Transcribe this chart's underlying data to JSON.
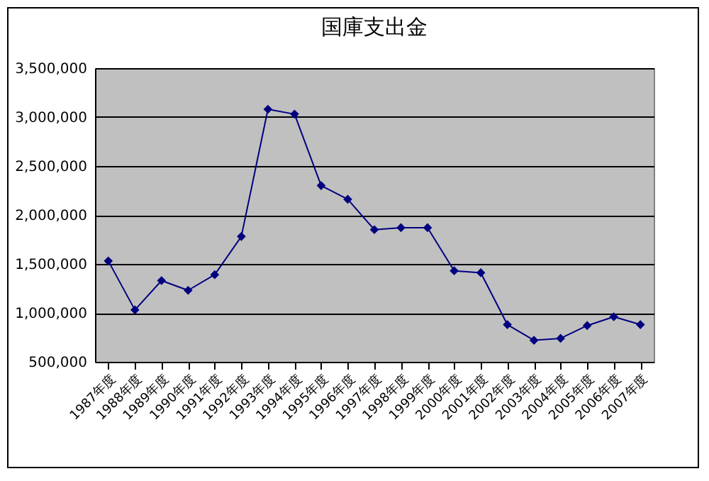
{
  "chart_data": {
    "type": "line",
    "title": "国庫支出金",
    "categories": [
      "1987年度",
      "1988年度",
      "1989年度",
      "1990年度",
      "1991年度",
      "1992年度",
      "1993年度",
      "1994年度",
      "1995年度",
      "1996年度",
      "1997年度",
      "1998年度",
      "1999年度",
      "2000年度",
      "2001年度",
      "2002年度",
      "2003年度",
      "2004年度",
      "2005年度",
      "2006年度",
      "2007年度"
    ],
    "series": [
      {
        "color": "#000080",
        "values": [
          1530000,
          1030000,
          1330000,
          1230000,
          1390000,
          1780000,
          3080000,
          3030000,
          2300000,
          2160000,
          1850000,
          1870000,
          1870000,
          1430000,
          1410000,
          880000,
          720000,
          740000,
          870000,
          960000,
          880000
        ]
      }
    ],
    "ylim": [
      500000,
      3500000
    ],
    "yticks": [
      {
        "value": 500000,
        "label": "500,000"
      },
      {
        "value": 1000000,
        "label": "1,000,000"
      },
      {
        "value": 1500000,
        "label": "1,500,000"
      },
      {
        "value": 2000000,
        "label": "2,000,000"
      },
      {
        "value": 2500000,
        "label": "2,500,000"
      },
      {
        "value": 3000000,
        "label": "3,000,000"
      },
      {
        "value": 3500000,
        "label": "3,500,000"
      }
    ],
    "grid": "y",
    "marker": "diamond",
    "line_style": "solid",
    "legend": false
  }
}
